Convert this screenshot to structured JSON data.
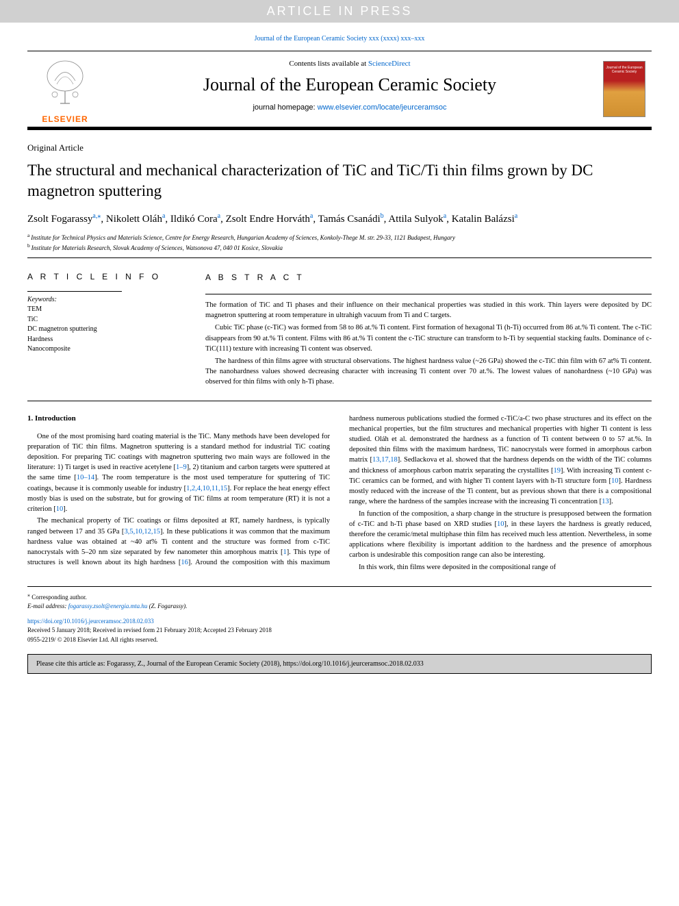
{
  "watermark": "ARTICLE IN PRESS",
  "citation_top": {
    "prefix": "Journal of the European Ceramic Society xxx (xxxx) xxx–xxx",
    "link_color": "#0066cc"
  },
  "masthead": {
    "contents_line_prefix": "Contents lists available at ",
    "contents_line_link": "ScienceDirect",
    "journal_name": "Journal of the European Ceramic Society",
    "homepage_prefix": "journal homepage: ",
    "homepage_link": "www.elsevier.com/locate/jeurceramsoc",
    "elsevier_text": "ELSEVIER",
    "cover_text_top": "Journal of the European Ceramic Society"
  },
  "article": {
    "type": "Original Article",
    "title": "The structural and mechanical characterization of TiC and TiC/Ti thin films grown by DC magnetron sputtering",
    "authors_html_parts": [
      {
        "name": "Zsolt Fogarassy",
        "sup": "a,",
        "corr": "⁎"
      },
      {
        "name": "Nikolett Oláh",
        "sup": "a"
      },
      {
        "name": "Ildikó Cora",
        "sup": "a"
      },
      {
        "name": "Zsolt Endre Horváth",
        "sup": "a"
      },
      {
        "name": "Tamás Csanádi",
        "sup": "b"
      },
      {
        "name": "Attila Sulyok",
        "sup": "a"
      },
      {
        "name": "Katalin Balázsi",
        "sup": "a"
      }
    ],
    "affiliations": [
      {
        "label": "a",
        "text": "Institute for Technical Physics and Materials Science, Centre for Energy Research, Hungarian Academy of Sciences, Konkoly-Thege M. str. 29-33, 1121 Budapest, Hungary"
      },
      {
        "label": "b",
        "text": "Institute for Materials Research, Slovak Academy of Sciences, Watsonova 47, 040 01 Kosice, Slovakia"
      }
    ]
  },
  "article_info": {
    "heading": "A R T I C L E  I N F O",
    "keywords_label": "Keywords:",
    "keywords": [
      "TEM",
      "TiC",
      "DC magnetron sputtering",
      "Hardness",
      "Nanocomposite"
    ]
  },
  "abstract": {
    "heading": "A B S T R A C T",
    "paragraphs": [
      "The formation of TiC and Ti phases and their influence on their mechanical properties was studied in this work. Thin layers were deposited by DC magnetron sputtering at room temperature in ultrahigh vacuum from Ti and C targets.",
      "Cubic TiC phase (c-TiC) was formed from 58 to 86 at.% Ti content. First formation of hexagonal Ti (h-Ti) occurred from 86 at.% Ti content. The c-TiC disappears from 90 at.% Ti content. Films with 86 at.% Ti content the c-TiC structure can transform to h-Ti by sequential stacking faults. Dominance of c-TiC(111) texture with increasing Ti content was observed.",
      "The hardness of thin films agree with structural observations. The highest hardness value (~26 GPa) showed the c-TiC thin film with 67 at% Ti content. The nanohardness values showed decreasing character with increasing Ti content over 70 at.%. The lowest values of nanohardness (~10 GPa) was observed for thin films with only h-Ti phase."
    ]
  },
  "body": {
    "section_number": "1.",
    "section_title": "Introduction",
    "col1_p1": "One of the most promising hard coating material is the TiC. Many methods have been developed for preparation of TiC thin films. Magnetron sputtering is a standard method for industrial TiC coating deposition. For preparing TiC coatings with magnetron sputtering two main ways are followed in the literature: 1) Ti target is used in reactive acetylene [",
    "ref_1_9": "1–9",
    "col1_p1b": "], 2) titanium and carbon targets were sputtered at the same time [",
    "ref_10_14": "10–14",
    "col1_p1c": "]. The room temperature is the most used temperature for sputtering of TiC coatings, because it is commonly useable for industry [",
    "ref_multi": "1,2,4,10,11,15",
    "col1_p1d": "]. For replace the heat energy effect mostly bias is used on the substrate, but for growing of TiC films at room temperature (RT) it is not a criterion [",
    "ref_10a": "10",
    "col1_p1e": "].",
    "col1_p2": "The mechanical property of TiC coatings or films deposited at RT, namely hardness, is typically ranged between 17 and 35 GPa [",
    "ref_multi2": "3,5,10,12,15",
    "col1_p2b": "]. In these publications it was common that the maximum hardness value was obtained at ~40 at% Ti content and the structure was formed from c-TiC nanocrystals with 5–20 nm size separated by few nanometer thin amorphous matrix [",
    "ref_1": "1",
    "col1_p2c": "]. This type of structures is well known about its high hardness [",
    "ref_16": "16",
    "col1_p2d": "]. Around the composition with this maximum hardness numerous publications studied the formed c-",
    "col2_p1": "TiC/a-C two phase structures and its effect on the mechanical properties, but the film structures and mechanical properties with higher Ti content is less studied. Oláh et al. demonstrated the hardness as a function of Ti content between 0 to 57 at.%. In deposited thin films with the maximum hardness, TiC nanocrystals were formed in amorphous carbon matrix [",
    "ref_131718": "13,17,18",
    "col2_p1b": "]. Sedlackova et al. showed that the hardness depends on the width of the TiC columns and thickness of amorphous carbon matrix separating the crystallites [",
    "ref_19": "19",
    "col2_p1c": "]. With increasing Ti content c-TiC ceramics can be formed, and with higher Ti content layers with h-Ti structure form [",
    "ref_10b": "10",
    "col2_p1d": "]. Hardness mostly reduced with the increase of the Ti content, but as previous shown that there is a compositional range, where the hardness of the samples increase with the increasing Ti concentration [",
    "ref_13": "13",
    "col2_p1e": "].",
    "col2_p2": "In function of the composition, a sharp change in the structure is presupposed between the formation of c-TiC and h-Ti phase based on XRD studies [",
    "ref_10c": "10",
    "col2_p2b": "], in these layers the hardness is greatly reduced, therefore the ceramic/metal multiphase thin film has received much less attention. Nevertheless, in some applications where flexibility is important addition to the hardness and the presence of amorphous carbon is undesirable this composition range can also be interesting.",
    "col2_p3": "In this work, thin films were deposited in the compositional range of"
  },
  "footer": {
    "corresp_marker": "⁎",
    "corresp_text": "Corresponding author.",
    "email_label": "E-mail address: ",
    "email": "fogarassy.zsolt@energia.mta.hu",
    "email_suffix": " (Z. Fogarassy).",
    "doi": "https://doi.org/10.1016/j.jeurceramsoc.2018.02.033",
    "received": "Received 5 January 2018; Received in revised form 21 February 2018; Accepted 23 February 2018",
    "copyright": "0955-2219/ © 2018 Elsevier Ltd. All rights reserved."
  },
  "cite_box": "Please cite this article as: Fogarassy, Z., Journal of the European Ceramic Society (2018), https://doi.org/10.1016/j.jeurceramsoc.2018.02.033",
  "colors": {
    "link": "#0066cc",
    "elsevier_orange": "#ff6600",
    "watermark_bg": "#d0d0d0",
    "cover_red": "#b82020"
  },
  "typography": {
    "body_fontsize": 10.5,
    "title_fontsize": 23,
    "journal_fontsize": 26,
    "heading_letterspacing": 4
  }
}
